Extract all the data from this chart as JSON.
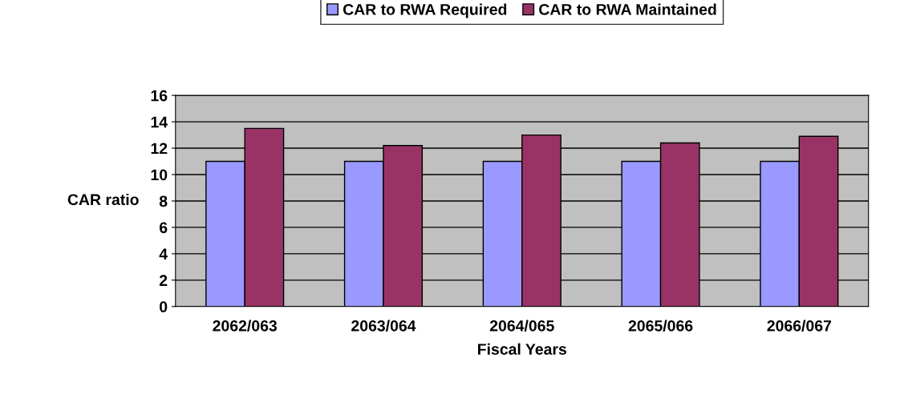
{
  "chart_data": {
    "type": "bar",
    "xlabel": "Fiscal Years",
    "ylabel": "CAR ratio",
    "categories": [
      "2062/063",
      "2063/064",
      "2064/065",
      "2065/066",
      "2066/067"
    ],
    "series": [
      {
        "name": "CAR to RWA Required",
        "color": "#9999ff",
        "values": [
          11,
          11,
          11,
          11,
          11
        ]
      },
      {
        "name": "CAR to RWA Maintained",
        "color": "#993366",
        "values": [
          13.5,
          12.2,
          13.0,
          12.4,
          12.9
        ]
      }
    ],
    "ylim": [
      0,
      16
    ],
    "yticks": [
      0,
      2,
      4,
      6,
      8,
      10,
      12,
      14,
      16
    ],
    "grid": "y",
    "legend": "top"
  }
}
